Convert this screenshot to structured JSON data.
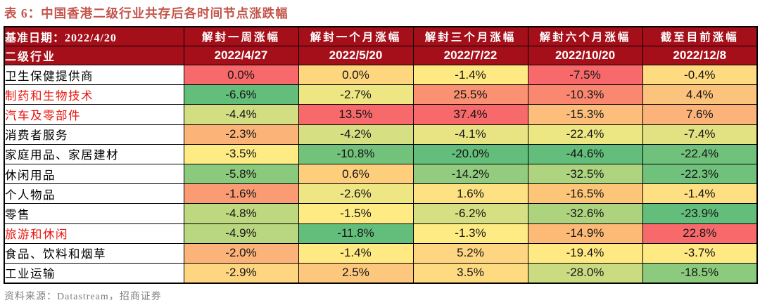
{
  "title": "表 6：中国香港二级行业共存后各时间节点涨跌幅",
  "header": {
    "base_date_label": "基准日期：2022/4/20",
    "industry_label": "二级行业",
    "columns": [
      {
        "period": "解封一周涨幅",
        "date": "2022/4/27"
      },
      {
        "period": "解封一个月涨幅",
        "date": "2022/5/20"
      },
      {
        "period": "解封三个月涨幅",
        "date": "2022/7/22"
      },
      {
        "period": "解封六个月涨幅",
        "date": "2022/10/20"
      },
      {
        "period": "截至目前涨幅",
        "date": "2022/12/8"
      }
    ]
  },
  "rows": [
    {
      "label": "卫生保健提供商",
      "highlight": false,
      "values": [
        "0.0%",
        "0.0%",
        "-1.4%",
        "-7.5%",
        "-0.4%"
      ],
      "colors": [
        "#F8696B",
        "#FDD67E",
        "#FFE983",
        "#F8696B",
        "#FEDA81"
      ]
    },
    {
      "label": "制药和生物技术",
      "highlight": true,
      "values": [
        "-6.6%",
        "-2.7%",
        "25.5%",
        "-10.3%",
        "4.4%"
      ],
      "colors": [
        "#63BE7B",
        "#EDE683",
        "#FA9173",
        "#FA8871",
        "#FCC37C"
      ]
    },
    {
      "label": "汽车及零部件",
      "highlight": true,
      "values": [
        "-4.4%",
        "13.5%",
        "37.4%",
        "-15.3%",
        "7.6%"
      ],
      "colors": [
        "#D2DE81",
        "#F8696B",
        "#F8696B",
        "#FDBE7B",
        "#FCB379"
      ]
    },
    {
      "label": "消费者服务",
      "highlight": false,
      "values": [
        "-2.3%",
        "-4.2%",
        "-4.1%",
        "-22.4%",
        "-7.4%"
      ],
      "colors": [
        "#FCB377",
        "#D6DF82",
        "#E8E483",
        "#ECE683",
        "#E2E282"
      ]
    },
    {
      "label": "家庭用品、家居建材",
      "highlight": false,
      "values": [
        "-3.5%",
        "-10.8%",
        "-20.0%",
        "-44.6%",
        "-22.4%"
      ],
      "colors": [
        "#FFEB84",
        "#72C27C",
        "#63BE7B",
        "#63BE7B",
        "#6FC17B"
      ]
    },
    {
      "label": "休闲用品",
      "highlight": false,
      "values": [
        "-5.8%",
        "0.6%",
        "-14.2%",
        "-32.5%",
        "-22.3%"
      ],
      "colors": [
        "#8BCA7D",
        "#FDCF7C",
        "#93CC7E",
        "#AED47F",
        "#6FC17B"
      ]
    },
    {
      "label": "个人物品",
      "highlight": false,
      "values": [
        "-1.6%",
        "-2.6%",
        "1.6%",
        "-16.5%",
        "-1.4%"
      ],
      "colors": [
        "#FA9B73",
        "#EEE683",
        "#FEE182",
        "#FCC578",
        "#FEDF81"
      ]
    },
    {
      "label": "零售",
      "highlight": false,
      "values": [
        "-4.8%",
        "-1.5%",
        "-6.2%",
        "-32.6%",
        "-23.9%"
      ],
      "colors": [
        "#BED880",
        "#FFEB84",
        "#D6DF82",
        "#ADD37F",
        "#63BE7B"
      ]
    },
    {
      "label": "旅游和休闲",
      "highlight": true,
      "values": [
        "-4.9%",
        "-11.8%",
        "-1.3%",
        "-14.9%",
        "22.8%"
      ],
      "colors": [
        "#B9D780",
        "#63BE7B",
        "#FFEB84",
        "#FCBA76",
        "#F8696B"
      ]
    },
    {
      "label": "食品、饮料和烟草",
      "highlight": false,
      "values": [
        "-2.0%",
        "-1.4%",
        "5.2%",
        "-19.4%",
        "-3.7%"
      ],
      "colors": [
        "#FCB379",
        "#FFE983",
        "#FED580",
        "#FFE983",
        "#FFE983"
      ]
    },
    {
      "label": "工业运输",
      "highlight": false,
      "values": [
        "-2.9%",
        "2.5%",
        "3.5%",
        "-28.0%",
        "-18.5%"
      ],
      "colors": [
        "#FED580",
        "#FDC87D",
        "#FEDB81",
        "#CADB81",
        "#8CCA7D"
      ]
    }
  ],
  "footer": "资料来源：Datastream，招商证券",
  "colors": {
    "header_bg": "#A50F19",
    "title_color": "#C3554C",
    "label_red": "#E8130C",
    "footer_color": "#808080",
    "heat_scale_min_green": "#63BE7B",
    "heat_scale_mid_yellow": "#FFEB84",
    "heat_scale_max_red": "#F8696B"
  }
}
